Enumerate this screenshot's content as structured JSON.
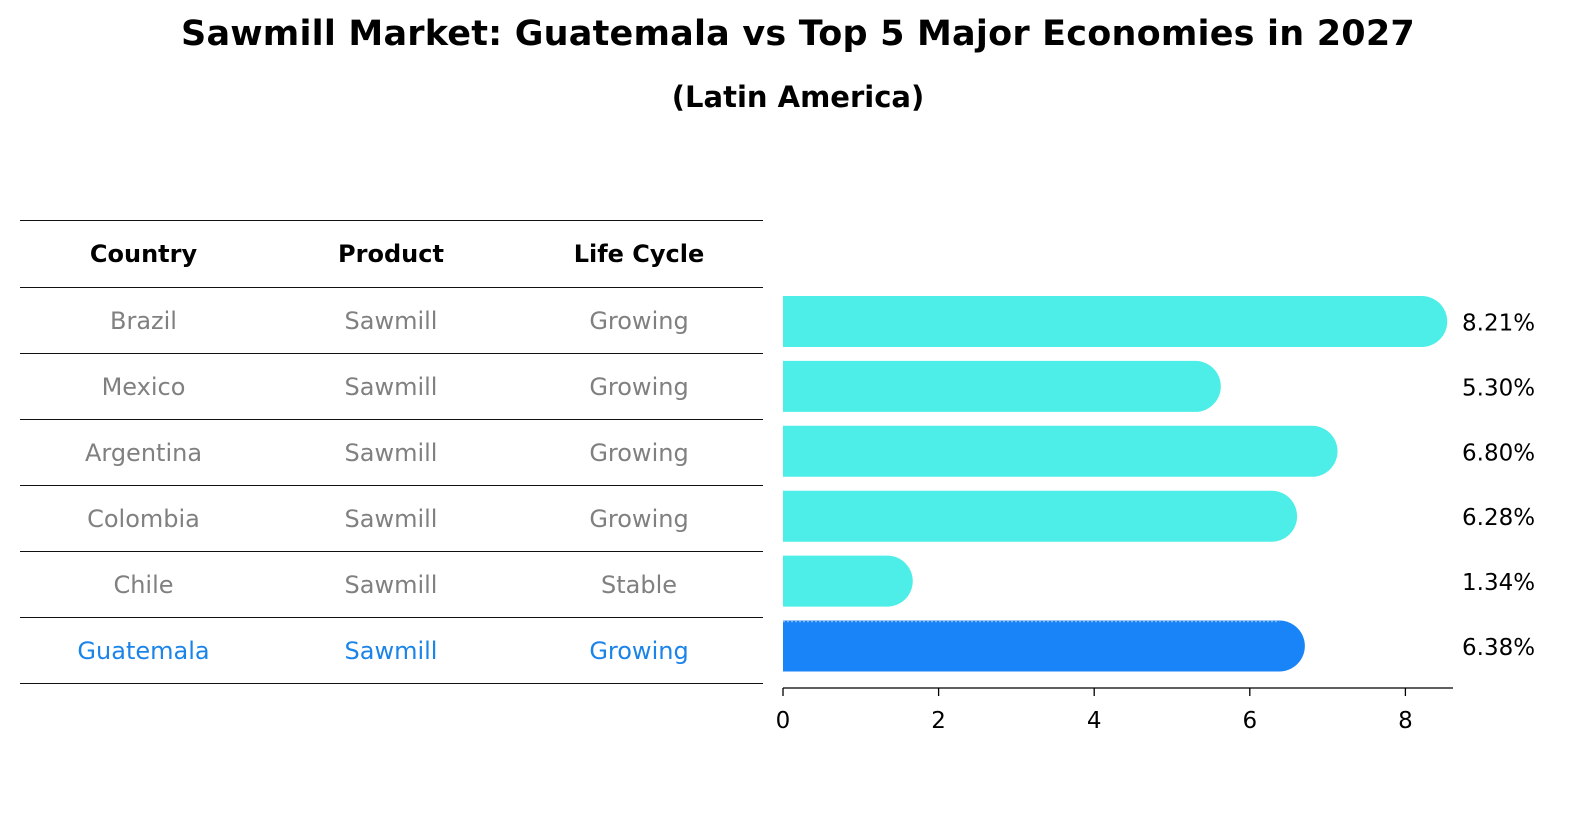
{
  "title": "Sawmill Market: Guatemala vs Top 5 Major Economies in 2027",
  "subtitle": "(Latin America)",
  "table": {
    "headers": [
      "Country",
      "Product",
      "Life Cycle"
    ],
    "rows": [
      {
        "country": "Brazil",
        "product": "Sawmill",
        "life_cycle": "Growing"
      },
      {
        "country": "Mexico",
        "product": "Sawmill",
        "life_cycle": "Growing"
      },
      {
        "country": "Argentina",
        "product": "Sawmill",
        "life_cycle": "Growing"
      },
      {
        "country": "Colombia",
        "product": "Sawmill",
        "life_cycle": "Growing"
      },
      {
        "country": "Chile",
        "product": "Sawmill",
        "life_cycle": "Stable"
      },
      {
        "country": "Guatemala",
        "product": "Sawmill",
        "life_cycle": "Growing"
      }
    ]
  },
  "colors": {
    "bar": "#4deee8",
    "highlight_bar": "#1984f7",
    "muted_text": "#808080",
    "highlight_text": "#1b84e8"
  },
  "chart_data": {
    "type": "bar",
    "orientation": "horizontal",
    "categories": [
      "Brazil",
      "Mexico",
      "Argentina",
      "Colombia",
      "Chile",
      "Guatemala"
    ],
    "values": [
      8.21,
      5.3,
      6.8,
      6.28,
      1.34,
      6.38
    ],
    "value_labels": [
      "8.21%",
      "5.30%",
      "6.80%",
      "6.28%",
      "1.34%",
      "6.38%"
    ],
    "highlight": "Guatemala",
    "xlim": [
      0,
      8.6
    ],
    "xticks": [
      0,
      2,
      4,
      6,
      8
    ],
    "xtick_labels": [
      "0",
      "2",
      "4",
      "6",
      "8"
    ],
    "title": "Sawmill Market: Guatemala vs Top 5 Major Economies in 2027",
    "subtitle": "(Latin America)",
    "xlabel": "",
    "ylabel": "",
    "grid": false,
    "legend": "none"
  }
}
